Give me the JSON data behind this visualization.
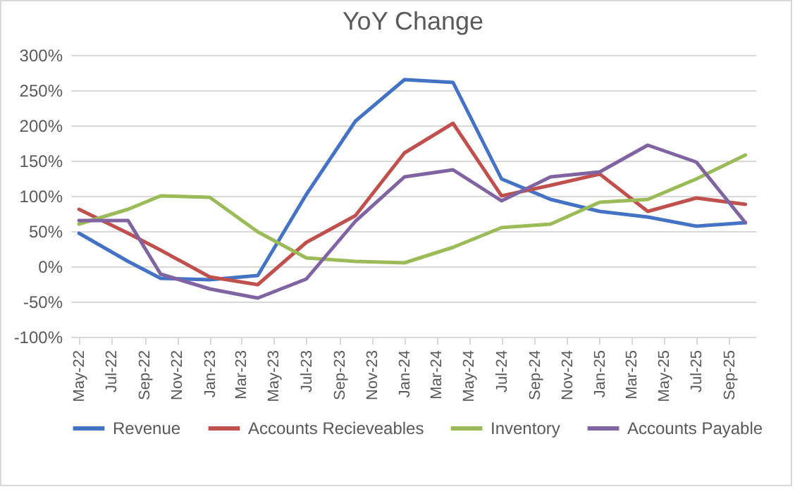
{
  "chart_data": {
    "type": "line",
    "title": "YoY Change",
    "x": [
      "2022-05",
      "2022-08",
      "2022-10",
      "2023-01",
      "2023-04",
      "2023-07",
      "2023-10",
      "2024-01",
      "2024-04",
      "2024-07",
      "2024-10",
      "2025-01",
      "2025-04",
      "2025-07",
      "2025-10"
    ],
    "series": [
      {
        "name": "Revenue",
        "color": "#4472c4",
        "values": [
          47,
          7,
          -17,
          -19,
          -13,
          102,
          206,
          265,
          261,
          124,
          95,
          78,
          70,
          57,
          62
        ]
      },
      {
        "name": "Accounts Recieveables",
        "color": "#c0504d",
        "values": [
          81,
          47,
          23,
          -15,
          -26,
          34,
          72,
          161,
          203,
          100,
          115,
          131,
          78,
          97,
          88
        ]
      },
      {
        "name": "Inventory",
        "color": "#9bbb59",
        "values": [
          60,
          81,
          100,
          98,
          49,
          12,
          7,
          5,
          27,
          55,
          60,
          91,
          95,
          124,
          158
        ]
      },
      {
        "name": "Accounts Payable",
        "color": "#8064a2",
        "values": [
          65,
          65,
          -11,
          -32,
          -45,
          -18,
          64,
          127,
          137,
          93,
          127,
          134,
          172,
          148,
          62
        ]
      }
    ],
    "xlim": [
      "2022-04-15",
      "2025-10-20"
    ],
    "xticks": [
      {
        "value": "2022-05",
        "label": "May-22"
      },
      {
        "value": "2022-07",
        "label": "Jul-22"
      },
      {
        "value": "2022-09",
        "label": "Sep-22"
      },
      {
        "value": "2022-11",
        "label": "Nov-22"
      },
      {
        "value": "2023-01",
        "label": "Jan-23"
      },
      {
        "value": "2023-03",
        "label": "Mar-23"
      },
      {
        "value": "2023-05",
        "label": "May-23"
      },
      {
        "value": "2023-07",
        "label": "Jul-23"
      },
      {
        "value": "2023-09",
        "label": "Sep-23"
      },
      {
        "value": "2023-11",
        "label": "Nov-23"
      },
      {
        "value": "2024-01",
        "label": "Jan-24"
      },
      {
        "value": "2024-03",
        "label": "Mar-24"
      },
      {
        "value": "2024-05",
        "label": "May-24"
      },
      {
        "value": "2024-07",
        "label": "Jul-24"
      },
      {
        "value": "2024-09",
        "label": "Sep-24"
      },
      {
        "value": "2024-11",
        "label": "Nov-24"
      },
      {
        "value": "2025-01",
        "label": "Jan-25"
      },
      {
        "value": "2025-03",
        "label": "Mar-25"
      },
      {
        "value": "2025-05",
        "label": "May-25"
      },
      {
        "value": "2025-07",
        "label": "Jul-25"
      },
      {
        "value": "2025-09",
        "label": "Sep-25"
      }
    ],
    "ylim": [
      -100,
      300
    ],
    "yticks": [
      {
        "value": -100,
        "label": "-100%"
      },
      {
        "value": -50,
        "label": "-50%"
      },
      {
        "value": 0,
        "label": "0%"
      },
      {
        "value": 50,
        "label": "50%"
      },
      {
        "value": 100,
        "label": "100%"
      },
      {
        "value": 150,
        "label": "150%"
      },
      {
        "value": 200,
        "label": "200%"
      },
      {
        "value": 250,
        "label": "250%"
      },
      {
        "value": 300,
        "label": "300%"
      }
    ],
    "grid": "y",
    "legend": "bottom",
    "marker": "none",
    "line_style": "solid"
  }
}
